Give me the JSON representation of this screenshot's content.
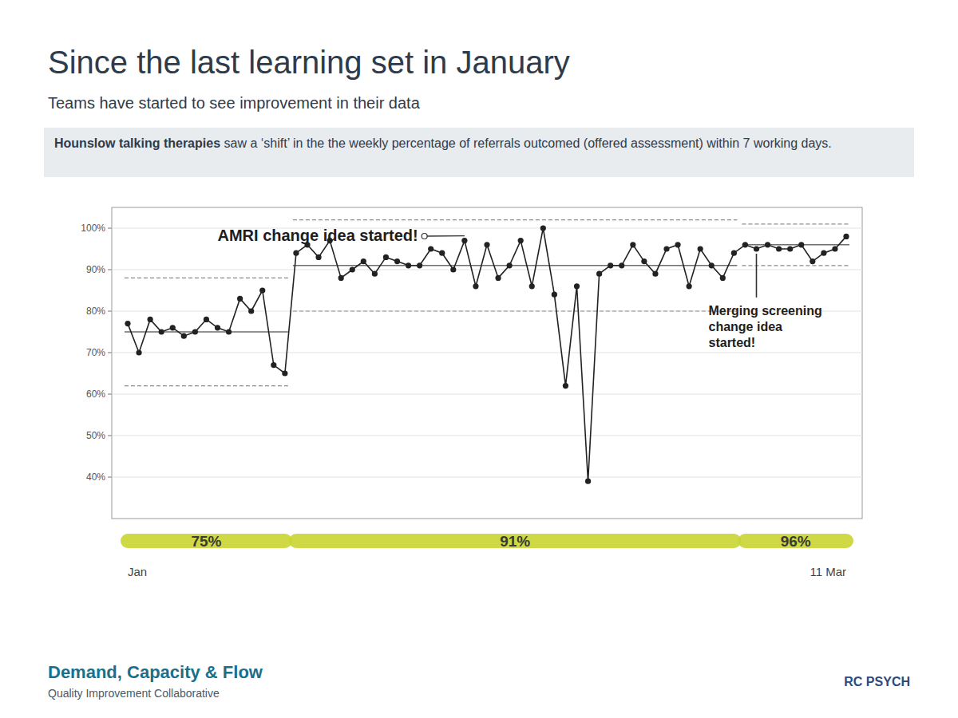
{
  "slide": {
    "title": "Since the last learning set in January",
    "subtitle": "Teams have started to see improvement in their data",
    "description_bold": "Hounslow talking therapies",
    "description": "saw a ‘shift’ in the the weekly percentage of referrals outcomed (offered assessment) within 7 working days.",
    "footer_title": "Demand, Capacity & Flow",
    "footer_subtitle": "Quality Improvement Collaborative",
    "logo": "RC PSYCH"
  },
  "chart_data": {
    "type": "line",
    "color": "#222222",
    "marker": "circle",
    "grid": true,
    "categories": [
      "Jan",
      null,
      null,
      null,
      null,
      null,
      null,
      null,
      null,
      null,
      null,
      null,
      null,
      null,
      null,
      null,
      null,
      null,
      null,
      null,
      null,
      null,
      null,
      null,
      null,
      null,
      null,
      null,
      null,
      null,
      null,
      null,
      null,
      null,
      null,
      null,
      null,
      null,
      null,
      null,
      null,
      null,
      null,
      null,
      null,
      null,
      null,
      null,
      null,
      null,
      null,
      null,
      null,
      null,
      null,
      null,
      null,
      null,
      null,
      null,
      null,
      null,
      null,
      null,
      "11 Mar"
    ],
    "values": [
      77,
      70,
      78,
      75,
      76,
      74,
      75,
      78,
      76,
      75,
      83,
      80,
      85,
      67,
      65,
      94,
      96,
      93,
      97,
      88,
      90,
      92,
      89,
      93,
      92,
      91,
      91,
      95,
      94,
      90,
      97,
      86,
      96,
      88,
      91,
      97,
      86,
      100,
      84,
      62,
      86,
      39,
      89,
      91,
      91,
      96,
      92,
      89,
      95,
      96,
      86,
      95,
      91,
      88,
      94,
      96,
      95,
      96,
      95,
      95,
      96,
      92,
      94,
      95,
      98
    ],
    "ylim": [
      30,
      105
    ],
    "yticks": [
      {
        "value": 40,
        "label": "40%"
      },
      {
        "value": 50,
        "label": "50%"
      },
      {
        "value": 60,
        "label": "60%"
      },
      {
        "value": 70,
        "label": "70%"
      },
      {
        "value": 80,
        "label": "80%"
      },
      {
        "value": 90,
        "label": "90%"
      },
      {
        "value": 100,
        "label": "100%"
      }
    ],
    "phases": [
      {
        "start": 0,
        "end": 14,
        "median": 75,
        "ucl": 88,
        "lcl": 62,
        "label": "75%"
      },
      {
        "start": 15,
        "end": 54,
        "median": 91,
        "ucl": 102,
        "lcl": 80,
        "label": "91%"
      },
      {
        "start": 55,
        "end": 64,
        "median": 96,
        "ucl": 101,
        "lcl": 91,
        "label": "96%"
      }
    ],
    "annotations": [
      {
        "text": "AMRI change idea started!",
        "index": 30
      },
      {
        "text": "Merging screening change idea started!",
        "index": 56
      }
    ]
  }
}
